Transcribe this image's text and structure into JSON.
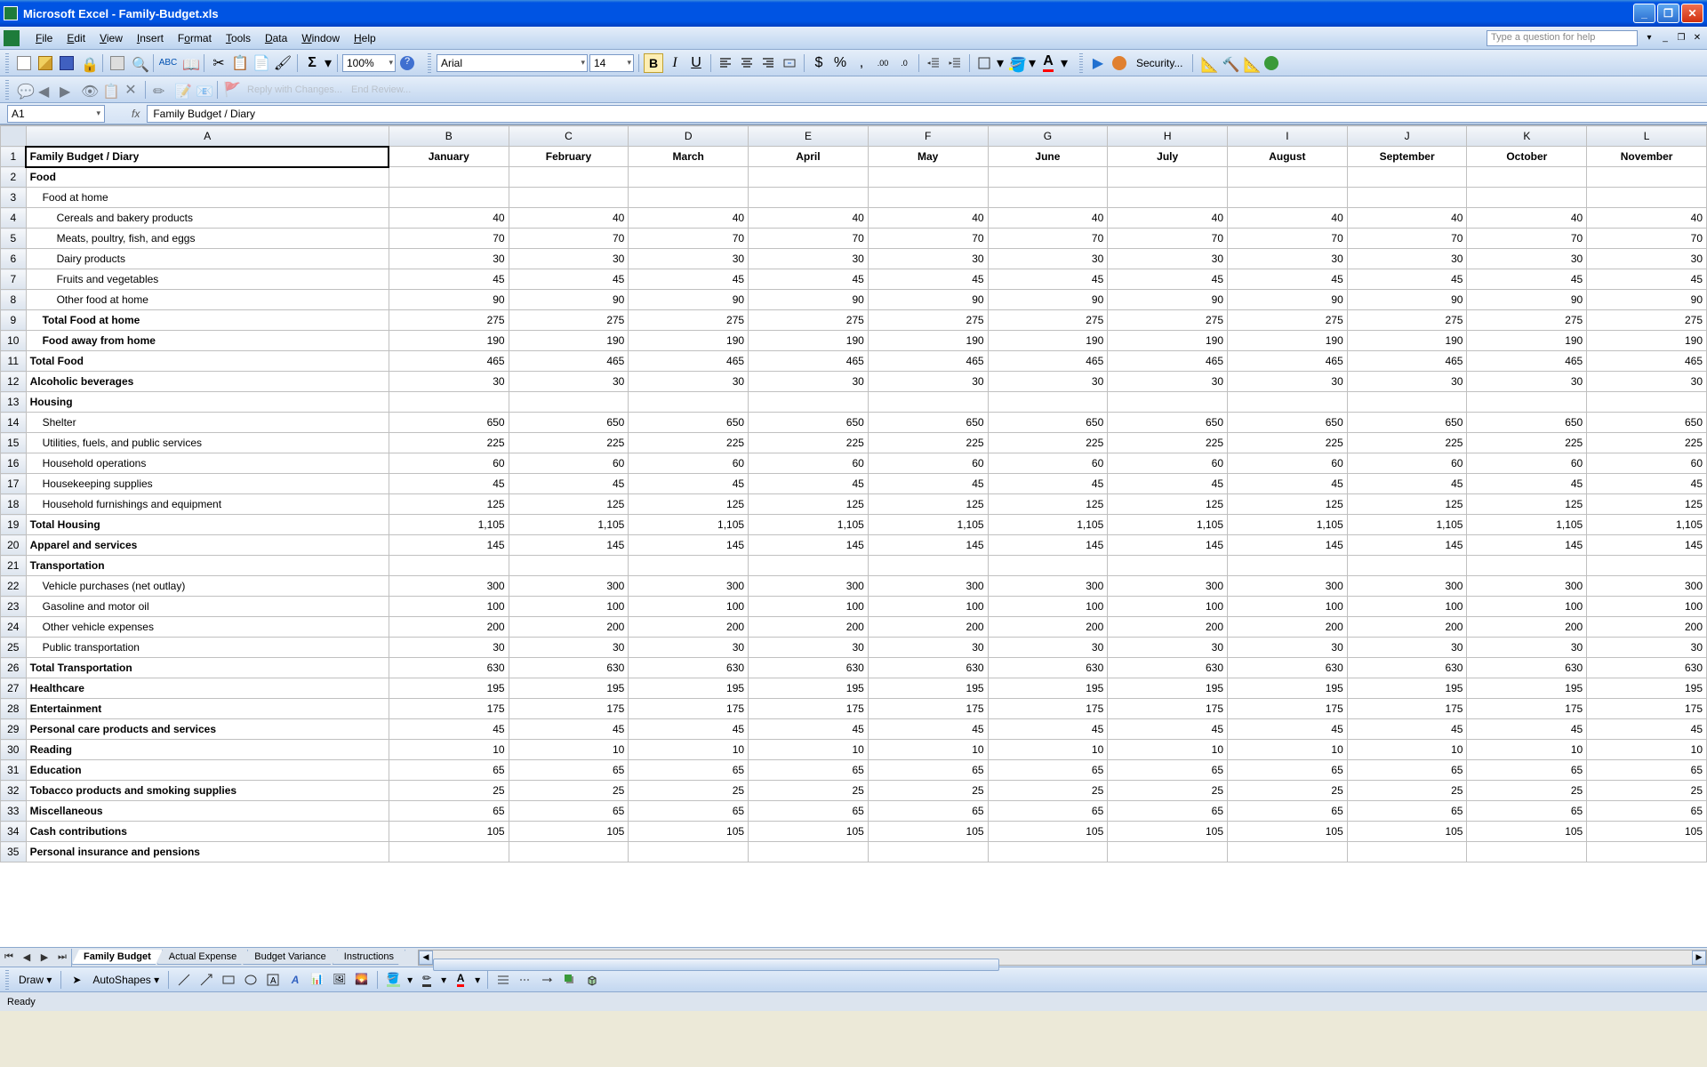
{
  "window": {
    "title": "Microsoft Excel - Family-Budget.xls",
    "help_placeholder": "Type a question for help"
  },
  "menus": [
    "File",
    "Edit",
    "View",
    "Insert",
    "Format",
    "Tools",
    "Data",
    "Window",
    "Help"
  ],
  "toolbar": {
    "zoom": "100%",
    "font_name": "Arial",
    "font_size": "14",
    "security": "Security...",
    "reply": "Reply with Changes...",
    "end_review": "End Review..."
  },
  "name_box": "A1",
  "formula": "Family Budget / Diary",
  "columns": [
    "A",
    "B",
    "C",
    "D",
    "E",
    "F",
    "G",
    "H",
    "I",
    "J",
    "K",
    "L"
  ],
  "months": [
    "January",
    "February",
    "March",
    "April",
    "May",
    "June",
    "July",
    "August",
    "September",
    "October",
    "November"
  ],
  "title_cell": "Family Budget / Diary",
  "rows": [
    {
      "n": 1,
      "label": "Family Budget / Diary",
      "title": true
    },
    {
      "n": 2,
      "label": "Food",
      "bold": true
    },
    {
      "n": 3,
      "label": "Food at home",
      "indent": 1
    },
    {
      "n": 4,
      "label": "Cereals and bakery products",
      "indent": 2,
      "val": "40"
    },
    {
      "n": 5,
      "label": "Meats, poultry, fish, and eggs",
      "indent": 2,
      "val": "70"
    },
    {
      "n": 6,
      "label": "Dairy products",
      "indent": 2,
      "val": "30"
    },
    {
      "n": 7,
      "label": "Fruits and vegetables",
      "indent": 2,
      "val": "45"
    },
    {
      "n": 8,
      "label": "Other food at home",
      "indent": 2,
      "val": "90"
    },
    {
      "n": 9,
      "label": "Total Food at home",
      "indent": 1,
      "bold": true,
      "val": "275"
    },
    {
      "n": 10,
      "label": "Food away from home",
      "indent": 1,
      "bold": true,
      "val": "190"
    },
    {
      "n": 11,
      "label": "Total Food",
      "bold": true,
      "val": "465"
    },
    {
      "n": 12,
      "label": "Alcoholic beverages",
      "bold": true,
      "val": "30"
    },
    {
      "n": 13,
      "label": "Housing",
      "bold": true
    },
    {
      "n": 14,
      "label": "Shelter",
      "indent": 1,
      "val": "650"
    },
    {
      "n": 15,
      "label": "Utilities, fuels, and public services",
      "indent": 1,
      "val": "225"
    },
    {
      "n": 16,
      "label": "Household operations",
      "indent": 1,
      "val": "60"
    },
    {
      "n": 17,
      "label": "Housekeeping supplies",
      "indent": 1,
      "val": "45"
    },
    {
      "n": 18,
      "label": "Household furnishings and equipment",
      "indent": 1,
      "val": "125"
    },
    {
      "n": 19,
      "label": "Total Housing",
      "bold": true,
      "val": "1,105"
    },
    {
      "n": 20,
      "label": "Apparel and services",
      "bold": true,
      "val": "145"
    },
    {
      "n": 21,
      "label": "Transportation",
      "bold": true
    },
    {
      "n": 22,
      "label": "Vehicle purchases (net outlay)",
      "indent": 1,
      "val": "300"
    },
    {
      "n": 23,
      "label": "Gasoline and motor oil",
      "indent": 1,
      "val": "100"
    },
    {
      "n": 24,
      "label": "Other vehicle expenses",
      "indent": 1,
      "val": "200"
    },
    {
      "n": 25,
      "label": "Public transportation",
      "indent": 1,
      "val": "30"
    },
    {
      "n": 26,
      "label": "Total Transportation",
      "bold": true,
      "val": "630"
    },
    {
      "n": 27,
      "label": "Healthcare",
      "bold": true,
      "val": "195"
    },
    {
      "n": 28,
      "label": "Entertainment",
      "bold": true,
      "val": "175"
    },
    {
      "n": 29,
      "label": "Personal care products and services",
      "bold": true,
      "val": "45"
    },
    {
      "n": 30,
      "label": "Reading",
      "bold": true,
      "val": "10"
    },
    {
      "n": 31,
      "label": "Education",
      "bold": true,
      "val": "65"
    },
    {
      "n": 32,
      "label": "Tobacco products and smoking supplies",
      "bold": true,
      "val": "25"
    },
    {
      "n": 33,
      "label": "Miscellaneous",
      "bold": true,
      "val": "65"
    },
    {
      "n": 34,
      "label": "Cash contributions",
      "bold": true,
      "val": "105"
    },
    {
      "n": 35,
      "label": "Personal insurance and pensions",
      "bold": true
    }
  ],
  "sheet_tabs": [
    "Family Budget",
    "Actual Expense",
    "Budget Variance",
    "Instructions"
  ],
  "active_tab": 0,
  "draw_label": "Draw",
  "autoshapes_label": "AutoShapes",
  "status": "Ready",
  "colors": {
    "titlebar": "#0054e3",
    "toolbar_bg": "#c3d7f0",
    "grid_border": "#c0c0c0",
    "header_bg": "#dce4ee"
  }
}
